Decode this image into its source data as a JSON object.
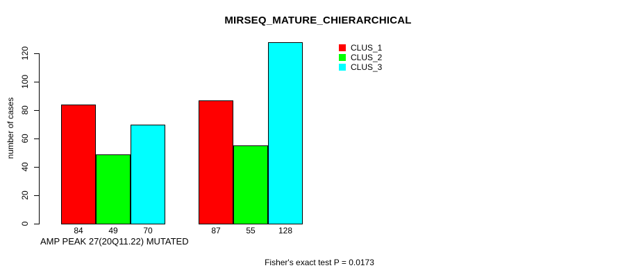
{
  "chart_data": {
    "type": "bar",
    "title": "MIRSEQ_MATURE_CHIERARCHICAL",
    "xlabel": "AMP PEAK 27(20Q11.22) MUTATED",
    "ylabel": "number of cases",
    "categories": [
      "",
      ""
    ],
    "series": [
      {
        "name": "CLUS_1",
        "color": "#FF0000",
        "values": [
          84,
          87
        ]
      },
      {
        "name": "CLUS_2",
        "color": "#00FF00",
        "values": [
          49,
          55
        ]
      },
      {
        "name": "CLUS_3",
        "color": "#00FFFF",
        "values": [
          70,
          128
        ]
      }
    ],
    "value_labels": [
      [
        84,
        49,
        70
      ],
      [
        87,
        55,
        128
      ]
    ],
    "yticks": [
      0,
      20,
      40,
      60,
      80,
      100,
      120
    ],
    "ylim": [
      0,
      128
    ],
    "grid": false,
    "legend_position": "top-right",
    "legend_entries": [
      "CLUS_1",
      "CLUS_2",
      "CLUS_3"
    ],
    "annotation": "Fisher's exact test P = 0.0173",
    "bar_edge_color": "#000000",
    "background_color": "#FFFFFF"
  }
}
